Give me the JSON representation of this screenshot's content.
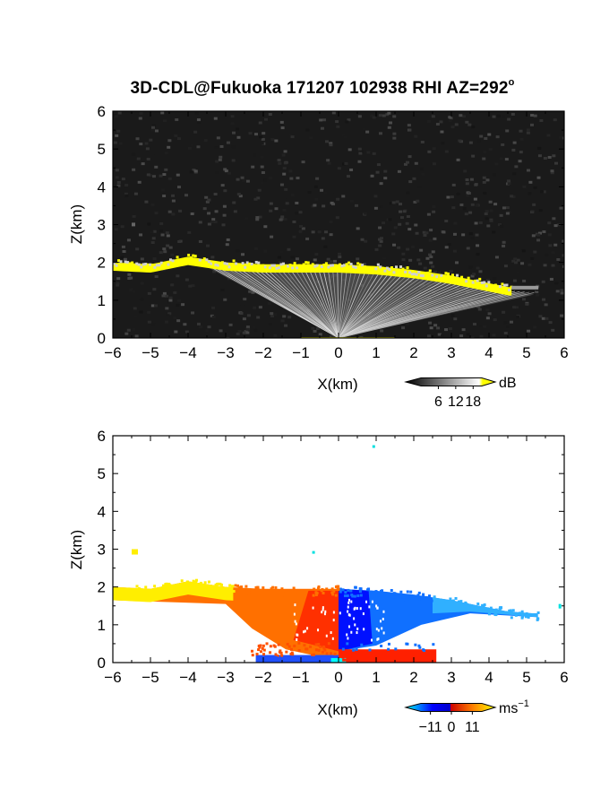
{
  "title": {
    "text": "3D-CDL@Fukuoka 171207 102938 RHI AZ=292",
    "degree_symbol": "o"
  },
  "chart_data": [
    {
      "type": "heatmap",
      "quantity": "backscatter intensity",
      "xlabel": "X(km)",
      "ylabel": "Z(km)",
      "xlim": [
        -6,
        6
      ],
      "ylim": [
        0,
        6
      ],
      "xticks": [
        "−6",
        "−5",
        "−4",
        "−3",
        "−2",
        "−1",
        "0",
        "1",
        "2",
        "3",
        "4",
        "5",
        "6"
      ],
      "yticks": [
        "0",
        "1",
        "2",
        "3",
        "4",
        "5",
        "6"
      ],
      "colorbar": {
        "unit": "dB",
        "ticks": [
          "6",
          "12",
          "18"
        ],
        "tick_values": [
          6,
          12,
          18
        ],
        "range": [
          0,
          21
        ],
        "colors": [
          "#000000",
          "#ffffff",
          "#ffff00"
        ]
      },
      "layer_top_km": [
        {
          "x": -6.0,
          "z": 2.0
        },
        {
          "x": -5.0,
          "z": 1.95
        },
        {
          "x": -4.0,
          "z": 2.15
        },
        {
          "x": -3.0,
          "z": 2.0
        },
        {
          "x": -2.0,
          "z": 1.95
        },
        {
          "x": -1.0,
          "z": 1.95
        },
        {
          "x": 0.0,
          "z": 1.95
        },
        {
          "x": 1.0,
          "z": 1.9
        },
        {
          "x": 2.0,
          "z": 1.8
        },
        {
          "x": 3.0,
          "z": 1.65
        },
        {
          "x": 4.0,
          "z": 1.45
        },
        {
          "x": 4.5,
          "z": 1.35
        },
        {
          "x": 5.2,
          "z": 1.3
        }
      ]
    },
    {
      "type": "heatmap",
      "quantity": "Doppler velocity",
      "xlabel": "X(km)",
      "ylabel": "Z(km)",
      "xlim": [
        -6,
        6
      ],
      "ylim": [
        0,
        6
      ],
      "xticks": [
        "−6",
        "−5",
        "−4",
        "−3",
        "−2",
        "−1",
        "0",
        "1",
        "2",
        "3",
        "4",
        "5",
        "6"
      ],
      "yticks": [
        "0",
        "1",
        "2",
        "3",
        "4",
        "5",
        "6"
      ],
      "colorbar": {
        "unit": "ms",
        "unit_exponent": "−1",
        "ticks": [
          "−11",
          "0",
          "11"
        ],
        "tick_values": [
          -11,
          0,
          11
        ],
        "range": [
          -16,
          16
        ],
        "colors": [
          "#00ffff",
          "#0000ff",
          "#ff0000",
          "#ffff00"
        ]
      }
    }
  ],
  "colors": {
    "backscatter_black": "#000000",
    "backscatter_yellow": "#ffff00",
    "velocity_cyan": "#00ffff",
    "velocity_blue": "#0000ff",
    "velocity_red": "#ff0000",
    "velocity_orange": "#ff8000",
    "velocity_yellow": "#ffff00"
  }
}
